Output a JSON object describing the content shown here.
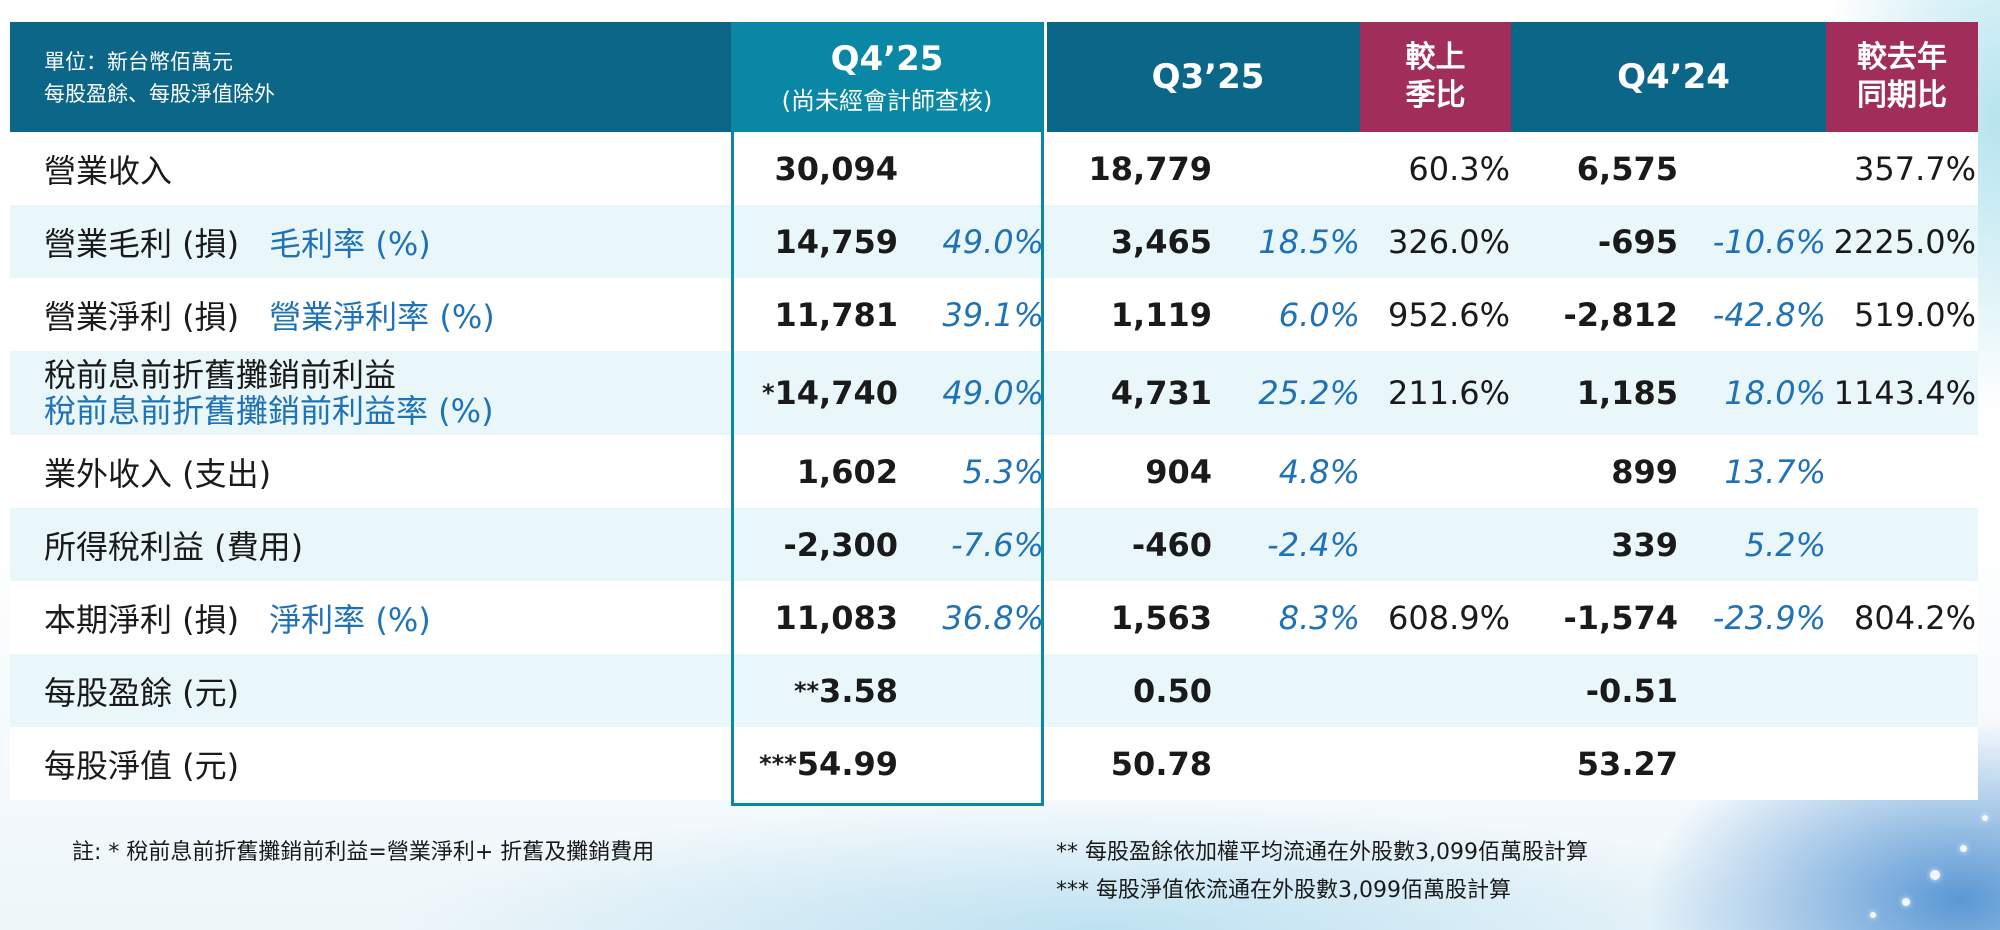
{
  "header": {
    "unit_line1": "單位：新台幣佰萬元",
    "unit_line2": "每股盈餘、每股淨值除外",
    "q4_25": "Q4’25",
    "q4_25_sub": "(尚未經會計師查核)",
    "q3_25": "Q3’25",
    "qoq_line1": "較上",
    "qoq_line2": "季比",
    "q4_24": "Q4’24",
    "yoy_line1": "較去年",
    "yoy_line2": "同期比"
  },
  "rows": [
    {
      "label": "營業收入",
      "sub": "",
      "q4_25": "30,094",
      "q4_25_pct": "",
      "q3_25": "18,779",
      "q3_25_pct": "",
      "qoq": "60.3%",
      "q4_24": "6,575",
      "q4_24_pct": "",
      "yoy": "357.7%"
    },
    {
      "label": "營業毛利 (損)",
      "sub": "毛利率 (%)",
      "q4_25": "14,759",
      "q4_25_pct": "49.0%",
      "q3_25": "3,465",
      "q3_25_pct": "18.5%",
      "qoq": "326.0%",
      "q4_24": "-695",
      "q4_24_pct": "-10.6%",
      "yoy": "2225.0%"
    },
    {
      "label": "營業淨利 (損)",
      "sub": "營業淨利率 (%)",
      "q4_25": "11,781",
      "q4_25_pct": "39.1%",
      "q3_25": "1,119",
      "q3_25_pct": "6.0%",
      "qoq": "952.6%",
      "q4_24": "-2,812",
      "q4_24_pct": "-42.8%",
      "yoy": "519.0%"
    },
    {
      "label": "稅前息前折舊攤銷前利益",
      "sub": "稅前息前折舊攤銷前利益率 (%)",
      "q4_25_mark": "*",
      "q4_25": "14,740",
      "q4_25_pct": "49.0%",
      "q3_25": "4,731",
      "q3_25_pct": "25.2%",
      "qoq": "211.6%",
      "q4_24": "1,185",
      "q4_24_pct": "18.0%",
      "yoy": "1143.4%"
    },
    {
      "label": "業外收入 (支出)",
      "sub": "",
      "q4_25": "1,602",
      "q4_25_pct": "5.3%",
      "q3_25": "904",
      "q3_25_pct": "4.8%",
      "qoq": "",
      "q4_24": "899",
      "q4_24_pct": "13.7%",
      "yoy": ""
    },
    {
      "label": "所得稅利益 (費用)",
      "sub": "",
      "q4_25": "-2,300",
      "q4_25_pct": "-7.6%",
      "q3_25": "-460",
      "q3_25_pct": "-2.4%",
      "qoq": "",
      "q4_24": "339",
      "q4_24_pct": "5.2%",
      "yoy": ""
    },
    {
      "label": "本期淨利 (損)",
      "sub": "淨利率 (%)",
      "q4_25": "11,083",
      "q4_25_pct": "36.8%",
      "q3_25": "1,563",
      "q3_25_pct": "8.3%",
      "qoq": "608.9%",
      "q4_24": "-1,574",
      "q4_24_pct": "-23.9%",
      "yoy": "804.2%"
    },
    {
      "label": "每股盈餘 (元)",
      "sub": "",
      "q4_25_mark": "**",
      "q4_25": "3.58",
      "q4_25_pct": "",
      "q3_25": "0.50",
      "q3_25_pct": "",
      "qoq": "",
      "q4_24": "-0.51",
      "q4_24_pct": "",
      "yoy": ""
    },
    {
      "label": "每股淨值 (元)",
      "sub": "",
      "q4_25_mark": "***",
      "q4_25": "54.99",
      "q4_25_pct": "",
      "q3_25": "50.78",
      "q3_25_pct": "",
      "qoq": "",
      "q4_24": "53.27",
      "q4_24_pct": "",
      "yoy": ""
    }
  ],
  "notes": {
    "note1": "註:  * 稅前息前折舊攤銷前利益=營業淨利+ 折舊及攤銷費用",
    "note2": "** 每股盈餘依加權平均流通在外股數3,099佰萬股計算",
    "note3": "*** 每股淨值依流通在外股數3,099佰萬股計算"
  }
}
